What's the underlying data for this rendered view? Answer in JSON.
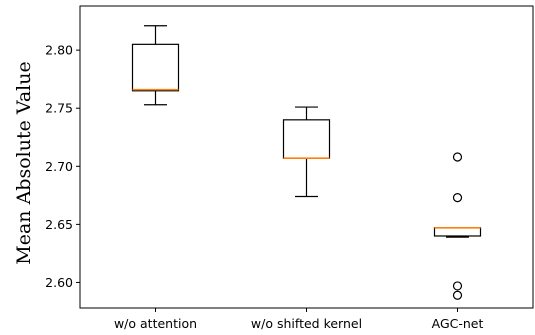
{
  "chart_data": {
    "type": "box",
    "title": "",
    "xlabel": "",
    "ylabel": "Mean Absolute Value",
    "ylim": [
      2.578,
      2.838
    ],
    "yticks": [
      2.6,
      2.65,
      2.7,
      2.75,
      2.8
    ],
    "ytick_labels": [
      "2.60",
      "2.65",
      "2.70",
      "2.75",
      "2.80"
    ],
    "grid": false,
    "colors": {
      "box": "#000000",
      "median": "#ff7f0e",
      "outlier": "#000000"
    },
    "categories": [
      "w/o attention",
      "w/o shifted kernel",
      "AGC-net"
    ],
    "boxes": [
      {
        "category": "w/o attention",
        "whisker_low": 2.753,
        "q1": 2.765,
        "median": 2.766,
        "q3": 2.805,
        "whisker_high": 2.821,
        "outliers": []
      },
      {
        "category": "w/o shifted kernel",
        "whisker_low": 2.674,
        "q1": 2.707,
        "median": 2.707,
        "q3": 2.74,
        "whisker_high": 2.751,
        "outliers": []
      },
      {
        "category": "AGC-net",
        "whisker_low": 2.639,
        "q1": 2.64,
        "median": 2.647,
        "q3": 2.647,
        "whisker_high": 2.647,
        "outliers": [
          2.708,
          2.673,
          2.597,
          2.589
        ]
      }
    ]
  }
}
